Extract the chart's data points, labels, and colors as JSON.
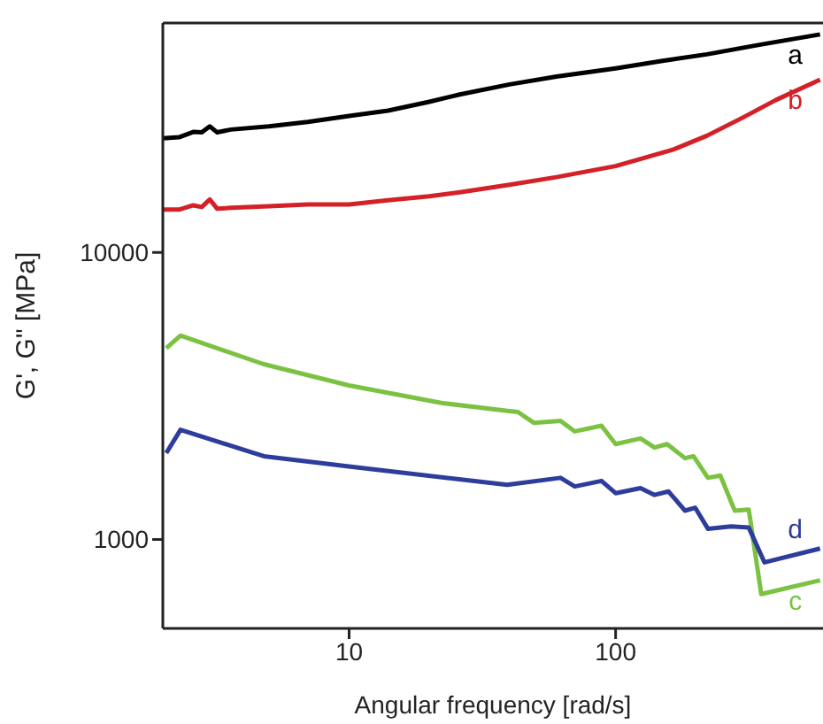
{
  "chart_data": {
    "type": "line",
    "xlabel": "Angular frequency [rad/s]",
    "ylabel": "G', G\" [MPa]",
    "log": "xy",
    "xlim": [
      2,
      600
    ],
    "ylim": [
      490,
      63000
    ],
    "xticks": [
      10,
      100
    ],
    "yticks": [
      1000,
      10000
    ],
    "grid": false,
    "legend": false,
    "marker": "none",
    "line_style": "solid",
    "series": [
      {
        "name": "a",
        "color": "#000000",
        "x": [
          2,
          2.3,
          2.6,
          2.8,
          3.0,
          3.2,
          3.6,
          5,
          7,
          10,
          14,
          20,
          26,
          40,
          60,
          100,
          150,
          220,
          350,
          585
        ],
        "values": [
          25000,
          25200,
          26300,
          26200,
          27500,
          26200,
          26800,
          27500,
          28500,
          29900,
          31200,
          33500,
          35500,
          38500,
          41000,
          43800,
          46500,
          49000,
          53000,
          57500
        ]
      },
      {
        "name": "b",
        "color": "#d42027",
        "x": [
          2,
          2.3,
          2.6,
          2.8,
          3.0,
          3.2,
          3.6,
          5,
          7,
          10,
          14,
          20,
          26,
          40,
          60,
          100,
          164,
          220,
          300,
          400,
          585
        ],
        "values": [
          14100,
          14100,
          14600,
          14400,
          15300,
          14200,
          14300,
          14500,
          14700,
          14700,
          15200,
          15700,
          16200,
          17200,
          18300,
          20000,
          22800,
          25500,
          29500,
          34000,
          40000
        ]
      },
      {
        "name": "c",
        "color": "#7cc242",
        "x": [
          2.06,
          2.33,
          4.79,
          10,
          22.2,
          40,
          43,
          49.3,
          62.1,
          70.3,
          88.5,
          100,
          124,
          140,
          156,
          182,
          196,
          222,
          247,
          280,
          316,
          352,
          585
        ],
        "values": [
          4640,
          5130,
          4080,
          3440,
          2990,
          2800,
          2780,
          2550,
          2590,
          2380,
          2490,
          2150,
          2250,
          2090,
          2150,
          1920,
          1950,
          1640,
          1670,
          1260,
          1270,
          645,
          721
        ]
      },
      {
        "name": "d",
        "color": "#2e3d9b",
        "x": [
          2.06,
          2.33,
          4.79,
          10.3,
          39.2,
          62.1,
          70.3,
          88.5,
          100,
          124,
          140,
          158,
          182,
          199,
          222,
          271,
          316,
          362,
          585
        ],
        "values": [
          2000,
          2410,
          1950,
          1790,
          1550,
          1640,
          1530,
          1600,
          1450,
          1510,
          1430,
          1470,
          1260,
          1290,
          1090,
          1110,
          1100,
          832,
          930
        ]
      }
    ]
  }
}
